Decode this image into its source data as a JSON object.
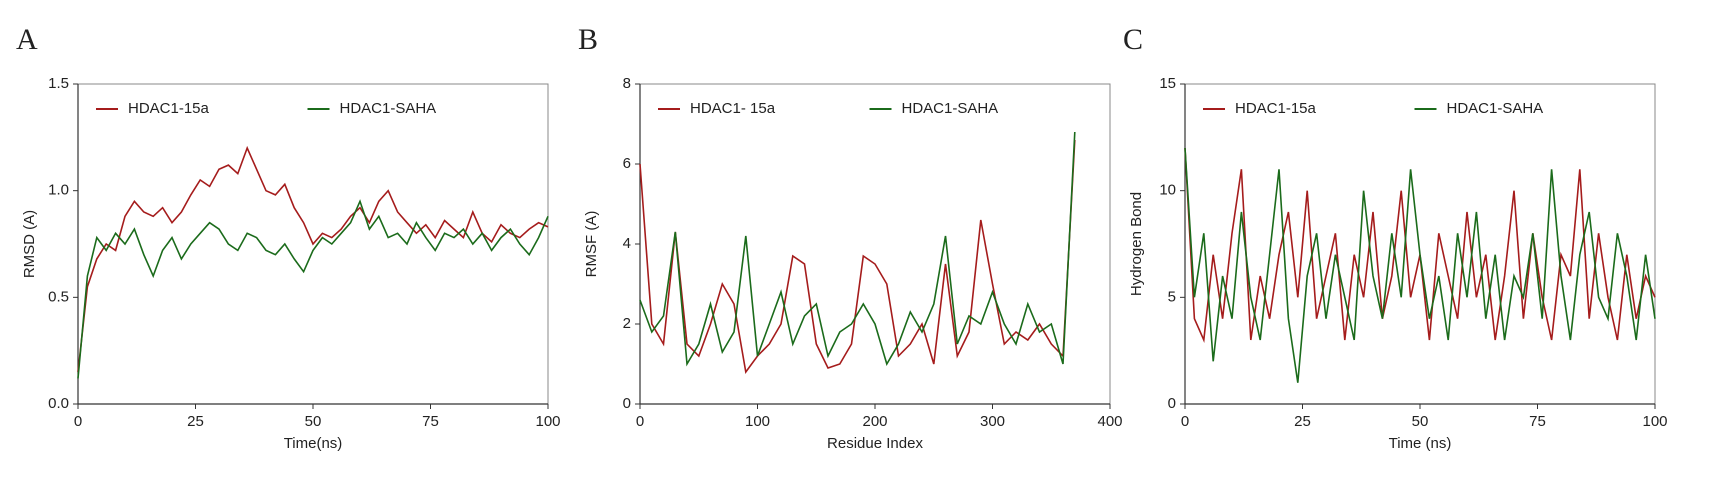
{
  "chart_data": [
    {
      "type": "line",
      "panel_label": "A",
      "x_label": "Time(ns)",
      "y_label": "RMSD (A)",
      "xlim": [
        0,
        100
      ],
      "xticks": [
        0,
        25,
        50,
        75,
        100
      ],
      "ylim": [
        0,
        1.5
      ],
      "yticks": [
        {
          "value": 0,
          "label": "0.0"
        },
        0.5,
        {
          "value": 1,
          "label": "1.0"
        },
        1.5
      ],
      "x": [
        0,
        2,
        4,
        6,
        8,
        10,
        12,
        14,
        16,
        18,
        20,
        22,
        24,
        26,
        28,
        30,
        32,
        34,
        36,
        38,
        40,
        42,
        44,
        46,
        48,
        50,
        52,
        54,
        56,
        58,
        60,
        62,
        64,
        66,
        68,
        70,
        72,
        74,
        76,
        78,
        80,
        82,
        84,
        86,
        88,
        90,
        92,
        94,
        96,
        98,
        100
      ],
      "series": [
        {
          "name": "HDAC1-15a",
          "color": "#a51c1c",
          "values": [
            0.15,
            0.55,
            0.68,
            0.75,
            0.72,
            0.88,
            0.95,
            0.9,
            0.88,
            0.92,
            0.85,
            0.9,
            0.98,
            1.05,
            1.02,
            1.1,
            1.12,
            1.08,
            1.2,
            1.1,
            1.0,
            0.98,
            1.03,
            0.92,
            0.85,
            0.75,
            0.8,
            0.78,
            0.82,
            0.88,
            0.92,
            0.85,
            0.95,
            1.0,
            0.9,
            0.85,
            0.8,
            0.84,
            0.78,
            0.86,
            0.82,
            0.78,
            0.9,
            0.8,
            0.76,
            0.84,
            0.8,
            0.78,
            0.82,
            0.85,
            0.83
          ]
        },
        {
          "name": "HDAC1-SAHA",
          "color": "#1b6b1b",
          "values": [
            0.12,
            0.6,
            0.78,
            0.72,
            0.8,
            0.75,
            0.82,
            0.7,
            0.6,
            0.72,
            0.78,
            0.68,
            0.75,
            0.8,
            0.85,
            0.82,
            0.75,
            0.72,
            0.8,
            0.78,
            0.72,
            0.7,
            0.75,
            0.68,
            0.62,
            0.72,
            0.78,
            0.75,
            0.8,
            0.85,
            0.95,
            0.82,
            0.88,
            0.78,
            0.8,
            0.75,
            0.85,
            0.78,
            0.72,
            0.8,
            0.78,
            0.82,
            0.75,
            0.8,
            0.72,
            0.78,
            0.82,
            0.75,
            0.7,
            0.78,
            0.88
          ]
        }
      ]
    },
    {
      "type": "line",
      "panel_label": "B",
      "x_label": "Residue Index",
      "y_label": "RMSF (A)",
      "xlim": [
        0,
        400
      ],
      "xticks": [
        0,
        100,
        200,
        300,
        400
      ],
      "ylim": [
        0,
        8
      ],
      "yticks": [
        0,
        2,
        4,
        6,
        8
      ],
      "x": [
        0,
        10,
        20,
        30,
        40,
        50,
        60,
        70,
        80,
        90,
        100,
        110,
        120,
        130,
        140,
        150,
        160,
        170,
        180,
        190,
        200,
        210,
        220,
        230,
        240,
        250,
        260,
        270,
        280,
        290,
        300,
        310,
        320,
        330,
        340,
        350,
        360,
        370
      ],
      "series": [
        {
          "name": "HDAC1- 15a",
          "color": "#a51c1c",
          "values": [
            6.0,
            2.0,
            1.5,
            4.3,
            1.5,
            1.2,
            2.0,
            3.0,
            2.5,
            0.8,
            1.2,
            1.5,
            2.0,
            3.7,
            3.5,
            1.5,
            0.9,
            1.0,
            1.5,
            3.7,
            3.5,
            3.0,
            1.2,
            1.5,
            2.0,
            1.0,
            3.5,
            1.2,
            1.8,
            4.6,
            3.0,
            1.5,
            1.8,
            1.6,
            2.0,
            1.5,
            1.2,
            6.6
          ]
        },
        {
          "name": "HDAC1-SAHA",
          "color": "#1b6b1b",
          "values": [
            2.6,
            1.8,
            2.2,
            4.3,
            1.0,
            1.5,
            2.5,
            1.3,
            1.8,
            4.2,
            1.2,
            2.0,
            2.8,
            1.5,
            2.2,
            2.5,
            1.2,
            1.8,
            2.0,
            2.5,
            2.0,
            1.0,
            1.5,
            2.3,
            1.8,
            2.5,
            4.2,
            1.5,
            2.2,
            2.0,
            2.8,
            2.0,
            1.5,
            2.5,
            1.8,
            2.0,
            1.0,
            6.8
          ]
        }
      ]
    },
    {
      "type": "line",
      "panel_label": "C",
      "x_label": "Time (ns)",
      "y_label": "Hydrogen Bond",
      "xlim": [
        0,
        100
      ],
      "xticks": [
        0,
        25,
        50,
        75,
        100
      ],
      "ylim": [
        0,
        15
      ],
      "yticks": [
        0,
        5,
        10,
        15
      ],
      "x": [
        0,
        2,
        4,
        6,
        8,
        10,
        12,
        14,
        16,
        18,
        20,
        22,
        24,
        26,
        28,
        30,
        32,
        34,
        36,
        38,
        40,
        42,
        44,
        46,
        48,
        50,
        52,
        54,
        56,
        58,
        60,
        62,
        64,
        66,
        68,
        70,
        72,
        74,
        76,
        78,
        80,
        82,
        84,
        86,
        88,
        90,
        92,
        94,
        96,
        98,
        100
      ],
      "series": [
        {
          "name": "HDAC1-15a",
          "color": "#a51c1c",
          "values": [
            12,
            4,
            3,
            7,
            4,
            8,
            11,
            3,
            6,
            4,
            7,
            9,
            5,
            10,
            4,
            6,
            8,
            3,
            7,
            5,
            9,
            4,
            6,
            10,
            5,
            7,
            3,
            8,
            6,
            4,
            9,
            5,
            7,
            3,
            6,
            10,
            4,
            8,
            5,
            3,
            7,
            6,
            11,
            4,
            8,
            5,
            3,
            7,
            4,
            6,
            5
          ]
        },
        {
          "name": "HDAC1-SAHA",
          "color": "#1b6b1b",
          "values": [
            12,
            5,
            8,
            2,
            6,
            4,
            9,
            5,
            3,
            7,
            11,
            4,
            1,
            6,
            8,
            4,
            7,
            5,
            3,
            10,
            6,
            4,
            8,
            5,
            11,
            7,
            4,
            6,
            3,
            8,
            5,
            9,
            4,
            7,
            3,
            6,
            5,
            8,
            4,
            11,
            6,
            3,
            7,
            9,
            5,
            4,
            8,
            6,
            3,
            7,
            4
          ]
        }
      ]
    }
  ]
}
